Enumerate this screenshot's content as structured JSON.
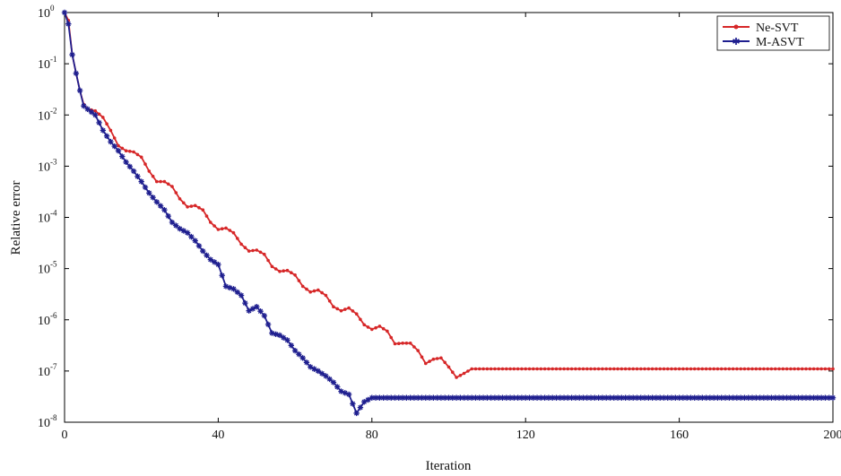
{
  "chart_data": {
    "type": "line",
    "xlabel": "Iteration",
    "ylabel": "Relative error",
    "xlim": [
      0,
      200
    ],
    "ylim": [
      1e-08,
      1
    ],
    "yscale": "log",
    "xticks": [
      0,
      40,
      80,
      120,
      160,
      200
    ],
    "xtick_labels": [
      "0",
      "40",
      "80",
      "120",
      "160",
      "200"
    ],
    "yticks": [
      {
        "base": "10",
        "exp": "0"
      },
      {
        "base": "10",
        "exp": "-1"
      },
      {
        "base": "10",
        "exp": "-2"
      },
      {
        "base": "10",
        "exp": "-3"
      },
      {
        "base": "10",
        "exp": "-4"
      },
      {
        "base": "10",
        "exp": "-5"
      },
      {
        "base": "10",
        "exp": "-6"
      },
      {
        "base": "10",
        "exp": "-7"
      },
      {
        "base": "10",
        "exp": "-8"
      }
    ],
    "grid": false,
    "legend_position": "top-right",
    "series": [
      {
        "name": "Ne-SVT",
        "color": "#d62728",
        "marker": "dot",
        "points": [
          [
            0,
            1.0
          ],
          [
            1,
            0.7
          ],
          [
            2,
            0.15
          ],
          [
            3,
            0.065
          ],
          [
            4,
            0.03
          ],
          [
            5,
            0.016
          ],
          [
            6,
            0.013
          ],
          [
            8,
            0.012
          ],
          [
            10,
            0.009
          ],
          [
            12,
            0.005
          ],
          [
            14,
            0.0025
          ],
          [
            16,
            0.002
          ],
          [
            18,
            0.0019
          ],
          [
            20,
            0.0015
          ],
          [
            22,
            0.0008
          ],
          [
            24,
            0.0005
          ],
          [
            26,
            0.0005
          ],
          [
            28,
            0.0004
          ],
          [
            30,
            0.00023
          ],
          [
            32,
            0.00016
          ],
          [
            34,
            0.00017
          ],
          [
            36,
            0.00014
          ],
          [
            38,
            8e-05
          ],
          [
            40,
            5.8e-05
          ],
          [
            42,
            6.2e-05
          ],
          [
            44,
            5e-05
          ],
          [
            46,
            3e-05
          ],
          [
            48,
            2.2e-05
          ],
          [
            50,
            2.3e-05
          ],
          [
            52,
            1.9e-05
          ],
          [
            54,
            1.1e-05
          ],
          [
            56,
            8.8e-06
          ],
          [
            58,
            9.2e-06
          ],
          [
            60,
            7.5e-06
          ],
          [
            62,
            4.5e-06
          ],
          [
            64,
            3.5e-06
          ],
          [
            66,
            3.8e-06
          ],
          [
            68,
            3e-06
          ],
          [
            70,
            1.8e-06
          ],
          [
            72,
            1.5e-06
          ],
          [
            74,
            1.7e-06
          ],
          [
            76,
            1.3e-06
          ],
          [
            78,
            8e-07
          ],
          [
            80,
            6.5e-07
          ],
          [
            82,
            7.5e-07
          ],
          [
            84,
            6e-07
          ],
          [
            86,
            3.4e-07
          ],
          [
            88,
            3.5e-07
          ],
          [
            90,
            3.5e-07
          ],
          [
            92,
            2.5e-07
          ],
          [
            94,
            1.4e-07
          ],
          [
            96,
            1.7e-07
          ],
          [
            98,
            1.8e-07
          ],
          [
            100,
            1.2e-07
          ],
          [
            102,
            7.5e-08
          ],
          [
            104,
            9e-08
          ],
          [
            106,
            1.1e-07
          ],
          [
            110,
            1.1e-07
          ],
          [
            130,
            1.1e-07
          ],
          [
            150,
            1.1e-07
          ],
          [
            170,
            1.1e-07
          ],
          [
            190,
            1.1e-07
          ],
          [
            200,
            1.1e-07
          ]
        ]
      },
      {
        "name": "M-ASVT",
        "color": "#1f1f8f",
        "marker": "star",
        "points": [
          [
            0,
            1.0
          ],
          [
            1,
            0.6
          ],
          [
            2,
            0.15
          ],
          [
            3,
            0.065
          ],
          [
            4,
            0.03
          ],
          [
            5,
            0.015
          ],
          [
            6,
            0.013
          ],
          [
            8,
            0.01
          ],
          [
            10,
            0.005
          ],
          [
            12,
            0.003
          ],
          [
            14,
            0.002
          ],
          [
            16,
            0.0012
          ],
          [
            18,
            0.0008
          ],
          [
            20,
            0.0005
          ],
          [
            22,
            0.0003
          ],
          [
            24,
            0.0002
          ],
          [
            26,
            0.00014
          ],
          [
            28,
            8e-05
          ],
          [
            30,
            6e-05
          ],
          [
            32,
            5e-05
          ],
          [
            34,
            3.5e-05
          ],
          [
            36,
            2.2e-05
          ],
          [
            38,
            1.5e-05
          ],
          [
            40,
            1.2e-05
          ],
          [
            42,
            4.5e-06
          ],
          [
            44,
            4e-06
          ],
          [
            46,
            3e-06
          ],
          [
            48,
            1.5e-06
          ],
          [
            50,
            1.8e-06
          ],
          [
            52,
            1.2e-06
          ],
          [
            54,
            5.5e-07
          ],
          [
            56,
            5e-07
          ],
          [
            58,
            4e-07
          ],
          [
            60,
            2.5e-07
          ],
          [
            62,
            1.8e-07
          ],
          [
            64,
            1.2e-07
          ],
          [
            66,
            1e-07
          ],
          [
            68,
            8e-08
          ],
          [
            70,
            6e-08
          ],
          [
            72,
            4e-08
          ],
          [
            74,
            3.5e-08
          ],
          [
            76,
            1.5e-08
          ],
          [
            78,
            2.5e-08
          ],
          [
            80,
            3e-08
          ],
          [
            82,
            3e-08
          ],
          [
            90,
            3e-08
          ],
          [
            110,
            3e-08
          ],
          [
            130,
            3e-08
          ],
          [
            150,
            3e-08
          ],
          [
            170,
            3e-08
          ],
          [
            190,
            3e-08
          ],
          [
            200,
            3e-08
          ]
        ]
      }
    ]
  }
}
